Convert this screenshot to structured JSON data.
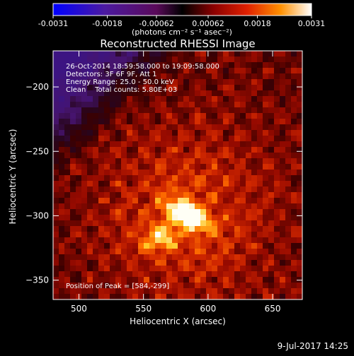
{
  "colorbar": {
    "ticks": [
      "-0.0031",
      "-0.0018",
      "-0.00062",
      "0.00062",
      "0.0018",
      "0.0031"
    ],
    "units": "(photons cm⁻² s⁻¹ asec⁻²)",
    "min": -0.0031,
    "max": 0.0031
  },
  "chart_data": {
    "type": "heatmap",
    "title": "Reconstructed RHESSI Image",
    "xlabel": "Heliocentric X (arcsec)",
    "ylabel": "Heliocentric Y (arcsec)",
    "xlim": [
      480,
      673
    ],
    "ylim": [
      -365,
      -172
    ],
    "xticks": [
      500,
      550,
      600,
      650
    ],
    "yticks": [
      -200,
      -250,
      -300,
      -350
    ],
    "peak": {
      "x": 584,
      "y": -299
    },
    "colormap": "purple-red-yellow-white",
    "annotations": [
      "26-Oct-2014 18:59:58.000 to 19:09:58.000",
      "Detectors: 3F 6F 9F, Att 1",
      "Energy Range: 25.0 - 50.0 keV",
      "Clean    Total counts: 5.80E+03"
    ],
    "peak_label": "Position of Peak = [584,-299]"
  },
  "footer": {
    "timestamp": "9-Jul-2017 14:25"
  }
}
